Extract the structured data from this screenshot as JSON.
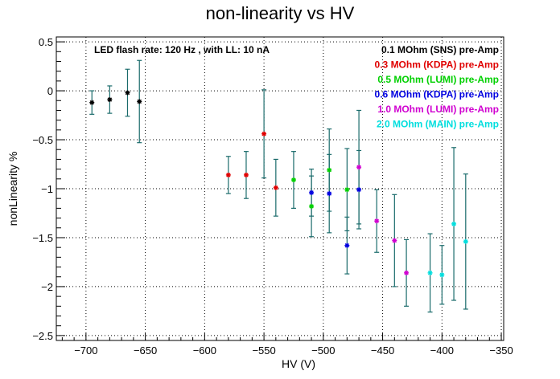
{
  "chart_data": {
    "type": "scatter",
    "title": "non-linearity vs HV",
    "xlabel": "HV (V)",
    "ylabel": "nonLinearity %",
    "xlim": [
      -725,
      -348
    ],
    "ylim": [
      -2.55,
      0.55
    ],
    "x_ticks": [
      -700,
      -650,
      -600,
      -550,
      -500,
      -450,
      -400,
      -350
    ],
    "y_ticks": [
      0.5,
      0,
      -0.5,
      -1,
      -1.5,
      -2,
      -2.5
    ],
    "x_tick_labels": [
      "−700",
      "−650",
      "−600",
      "−550",
      "−500",
      "−450",
      "−400",
      "−350"
    ],
    "y_tick_labels": [
      "0.5",
      "0",
      "−0.5",
      "−1",
      "−1.5",
      "−2",
      "−2.5"
    ],
    "grid": true,
    "legend_position": "top-right",
    "annotation": "LED flash rate: 120 Hz , with LL: 10 nA",
    "error_bar_color": "#1a6b6b",
    "series": [
      {
        "name": "0.1 MOhm (SNS) pre-Amp",
        "color": "#000000",
        "points": [
          {
            "x": -695,
            "y": -0.12,
            "err": 0.12
          },
          {
            "x": -680,
            "y": -0.09,
            "err": 0.14
          },
          {
            "x": -665,
            "y": -0.02,
            "err": 0.24
          },
          {
            "x": -655,
            "y": -0.11,
            "err": 0.42
          }
        ]
      },
      {
        "name": "0.3 MOhm (KDPA) pre-Amp",
        "color": "#e00000",
        "points": [
          {
            "x": -580,
            "y": -0.86,
            "err": 0.19
          },
          {
            "x": -565,
            "y": -0.86,
            "err": 0.24
          },
          {
            "x": -550,
            "y": -0.44,
            "err": 0.45
          },
          {
            "x": -540,
            "y": -0.99,
            "err": 0.29
          }
        ]
      },
      {
        "name": "0.5 MOhm (LUMI) pre-Amp",
        "color": "#00d000",
        "points": [
          {
            "x": -525,
            "y": -0.91,
            "err": 0.29
          },
          {
            "x": -510,
            "y": -1.18,
            "err": 0.31
          },
          {
            "x": -495,
            "y": -0.81,
            "err": 0.42
          },
          {
            "x": -480,
            "y": -1.01,
            "err": 0.42
          }
        ]
      },
      {
        "name": "0.6 MOhm (KDPA) pre-Amp",
        "color": "#0000e0",
        "points": [
          {
            "x": -510,
            "y": -1.04,
            "err": 0.24
          },
          {
            "x": -495,
            "y": -1.05,
            "err": 0.4
          },
          {
            "x": -480,
            "y": -1.58,
            "err": 0.29
          },
          {
            "x": -470,
            "y": -1.01,
            "err": 0.4
          }
        ]
      },
      {
        "name": "1.0 MOhm (LUMI) pre-Amp",
        "color": "#d000d0",
        "points": [
          {
            "x": -470,
            "y": -0.78,
            "err": 0.58
          },
          {
            "x": -455,
            "y": -1.33,
            "err": 0.32
          },
          {
            "x": -440,
            "y": -1.53,
            "err": 0.47
          },
          {
            "x": -430,
            "y": -1.86,
            "err": 0.34
          }
        ]
      },
      {
        "name": "2.0 MOhm (MAIN) pre-Amp",
        "color": "#00dede",
        "points": [
          {
            "x": -410,
            "y": -1.86,
            "err": 0.4
          },
          {
            "x": -400,
            "y": -1.88,
            "err": 0.3
          },
          {
            "x": -390,
            "y": -1.36,
            "err": 0.78
          },
          {
            "x": -380,
            "y": -1.54,
            "err": 0.69
          }
        ]
      }
    ]
  }
}
